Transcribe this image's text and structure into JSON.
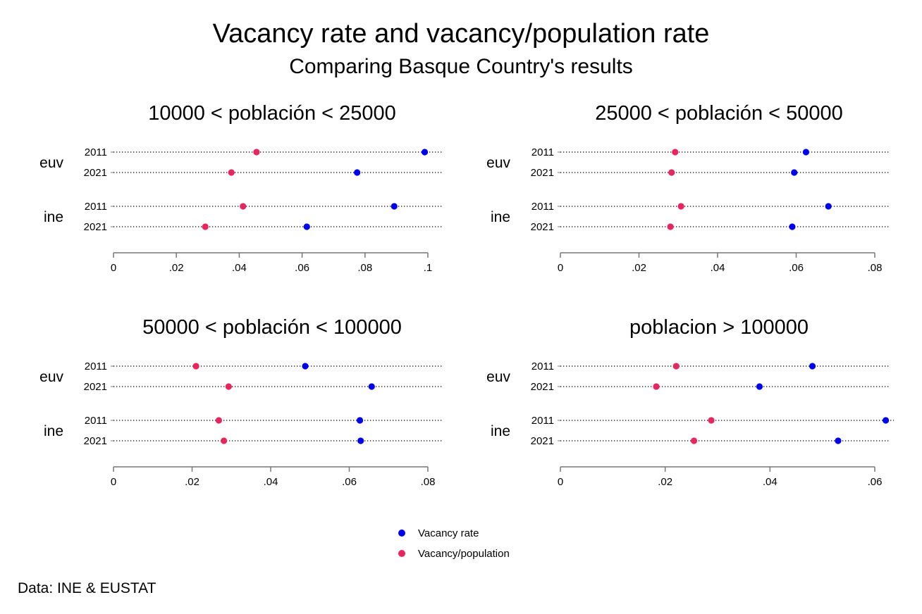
{
  "title": "Vacancy rate and vacancy/population rate",
  "subtitle": "Comparing Basque Country's results",
  "note": "Data: INE & EUSTAT",
  "colors": {
    "vacancy_rate": "#0000ee",
    "vacancy_population": "#e8265e",
    "axis": "#777777",
    "dots": "#000000"
  },
  "legend": {
    "items": [
      "Vacancy rate",
      "Vacancy/population"
    ]
  },
  "chart_data": [
    {
      "type": "scatter",
      "title": "10000 < población < 25000",
      "groups": [
        "euv",
        "ine"
      ],
      "rows": [
        {
          "group": "euv",
          "year": "2011",
          "vacancy_rate": 0.099,
          "vacancy_population": 0.0455
        },
        {
          "group": "euv",
          "year": "2021",
          "vacancy_rate": 0.0775,
          "vacancy_population": 0.0375
        },
        {
          "group": "ine",
          "year": "2011",
          "vacancy_rate": 0.0893,
          "vacancy_population": 0.0412
        },
        {
          "group": "ine",
          "year": "2021",
          "vacancy_rate": 0.0615,
          "vacancy_population": 0.0292
        }
      ],
      "xlim": [
        0,
        0.1
      ],
      "xticks": [
        0,
        0.02,
        0.04,
        0.06,
        0.08,
        0.1
      ],
      "xtick_labels": [
        "0",
        ".02",
        ".04",
        ".06",
        ".08",
        ".1"
      ]
    },
    {
      "type": "scatter",
      "title": "25000 < población < 50000",
      "groups": [
        "euv",
        "ine"
      ],
      "rows": [
        {
          "group": "euv",
          "year": "2011",
          "vacancy_rate": 0.0625,
          "vacancy_population": 0.0292
        },
        {
          "group": "euv",
          "year": "2021",
          "vacancy_rate": 0.0595,
          "vacancy_population": 0.0283
        },
        {
          "group": "ine",
          "year": "2011",
          "vacancy_rate": 0.0682,
          "vacancy_population": 0.0307
        },
        {
          "group": "ine",
          "year": "2021",
          "vacancy_rate": 0.059,
          "vacancy_population": 0.028
        }
      ],
      "xlim": [
        0,
        0.08
      ],
      "xticks": [
        0,
        0.02,
        0.04,
        0.06,
        0.08
      ],
      "xtick_labels": [
        "0",
        ".02",
        ".04",
        ".06",
        ".08"
      ]
    },
    {
      "type": "scatter",
      "title": "50000 < población < 100000",
      "groups": [
        "euv",
        "ine"
      ],
      "rows": [
        {
          "group": "euv",
          "year": "2011",
          "vacancy_rate": 0.0488,
          "vacancy_population": 0.021
        },
        {
          "group": "euv",
          "year": "2021",
          "vacancy_rate": 0.0657,
          "vacancy_population": 0.0293
        },
        {
          "group": "ine",
          "year": "2011",
          "vacancy_rate": 0.0627,
          "vacancy_population": 0.0268
        },
        {
          "group": "ine",
          "year": "2021",
          "vacancy_rate": 0.0629,
          "vacancy_population": 0.0281
        }
      ],
      "xlim": [
        0,
        0.08
      ],
      "xticks": [
        0,
        0.02,
        0.04,
        0.06,
        0.08
      ],
      "xtick_labels": [
        "0",
        ".02",
        ".04",
        ".06",
        ".08"
      ]
    },
    {
      "type": "scatter",
      "title": "poblacion > 100000",
      "groups": [
        "euv",
        "ine"
      ],
      "rows": [
        {
          "group": "euv",
          "year": "2011",
          "vacancy_rate": 0.0481,
          "vacancy_population": 0.0221
        },
        {
          "group": "euv",
          "year": "2021",
          "vacancy_rate": 0.038,
          "vacancy_population": 0.0183
        },
        {
          "group": "ine",
          "year": "2011",
          "vacancy_rate": 0.0621,
          "vacancy_population": 0.0288
        },
        {
          "group": "ine",
          "year": "2021",
          "vacancy_rate": 0.053,
          "vacancy_population": 0.0255
        }
      ],
      "xlim": [
        0,
        0.06
      ],
      "xticks": [
        0,
        0.02,
        0.04,
        0.06
      ],
      "xtick_labels": [
        "0",
        ".02",
        ".04",
        ".06"
      ]
    }
  ]
}
